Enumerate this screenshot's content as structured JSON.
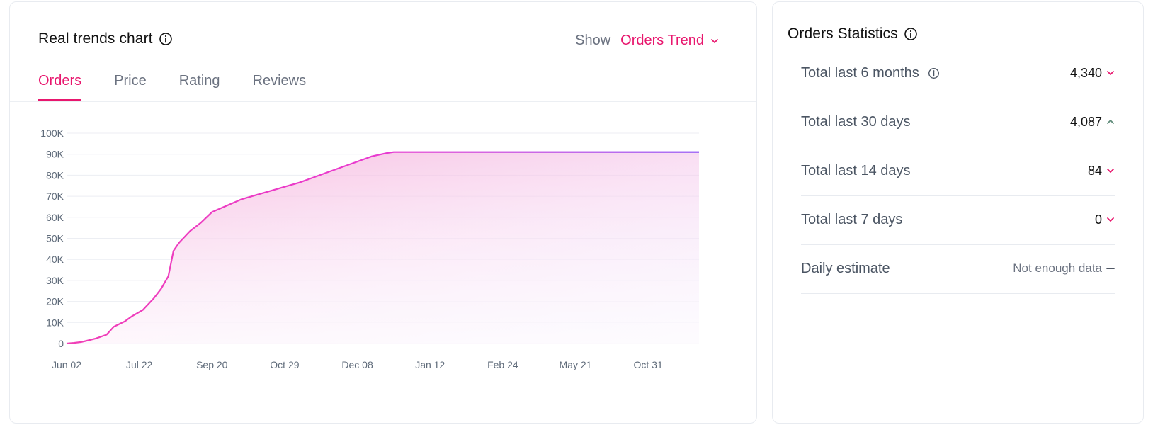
{
  "chart_card": {
    "title": "Real trends chart",
    "show_label": "Show",
    "show_value": "Orders Trend",
    "tabs": [
      {
        "label": "Orders",
        "active": true
      },
      {
        "label": "Price",
        "active": false
      },
      {
        "label": "Rating",
        "active": false
      },
      {
        "label": "Reviews",
        "active": false
      }
    ]
  },
  "stats_card": {
    "title": "Orders Statistics",
    "rows": [
      {
        "label": "Total last 6 months",
        "value": "4,340",
        "trend": "down",
        "info": true
      },
      {
        "label": "Total last 30 days",
        "value": "4,087",
        "trend": "up",
        "info": false
      },
      {
        "label": "Total last 14 days",
        "value": "84",
        "trend": "down",
        "info": false
      },
      {
        "label": "Total last 7 days",
        "value": "0",
        "trend": "down",
        "info": false
      },
      {
        "label": "Daily estimate",
        "value": "Not enough data",
        "trend": "flat",
        "info": false
      }
    ]
  },
  "colors": {
    "accent": "#e8176e",
    "line_start": "#f03fb6",
    "line_end": "#8b4cf6",
    "trend_down": "#e8176e",
    "trend_up": "#5d8a78",
    "trend_flat": "#374151"
  },
  "chart_data": {
    "type": "area",
    "title": "",
    "xlabel": "",
    "ylabel": "",
    "ylim": [
      0,
      100000
    ],
    "y_ticks": [
      "0",
      "10K",
      "20K",
      "30K",
      "40K",
      "50K",
      "60K",
      "70K",
      "80K",
      "90K",
      "100K"
    ],
    "x_ticks": [
      "Jun 02",
      "Jul 22",
      "Sep 20",
      "Oct 29",
      "Dec 08",
      "Jan 12",
      "Feb 24",
      "May 21",
      "Oct 31"
    ],
    "grid": true,
    "series": [
      {
        "values": [
          [
            0,
            0
          ],
          [
            0.1,
            300
          ],
          [
            0.2,
            700
          ],
          [
            0.3,
            1500
          ],
          [
            0.4,
            2400
          ],
          [
            0.55,
            4200
          ],
          [
            0.65,
            8000
          ],
          [
            0.8,
            10500
          ],
          [
            0.9,
            13000
          ],
          [
            1.05,
            16000
          ],
          [
            1.2,
            21500
          ],
          [
            1.3,
            26000
          ],
          [
            1.4,
            32000
          ],
          [
            1.47,
            44000
          ],
          [
            1.55,
            48000
          ],
          [
            1.7,
            53500
          ],
          [
            1.85,
            57500
          ],
          [
            2.0,
            62500
          ],
          [
            2.2,
            65500
          ],
          [
            2.4,
            68500
          ],
          [
            2.6,
            70500
          ],
          [
            2.8,
            72500
          ],
          [
            3.0,
            74500
          ],
          [
            3.2,
            76500
          ],
          [
            3.4,
            79000
          ],
          [
            3.6,
            81500
          ],
          [
            3.8,
            84000
          ],
          [
            4.0,
            86500
          ],
          [
            4.2,
            89000
          ],
          [
            4.4,
            90500
          ],
          [
            4.5,
            91000
          ],
          [
            5.0,
            91000
          ],
          [
            6.0,
            91000
          ],
          [
            7.0,
            91000
          ],
          [
            8.0,
            91000
          ],
          [
            8.7,
            91000
          ]
        ]
      }
    ]
  }
}
